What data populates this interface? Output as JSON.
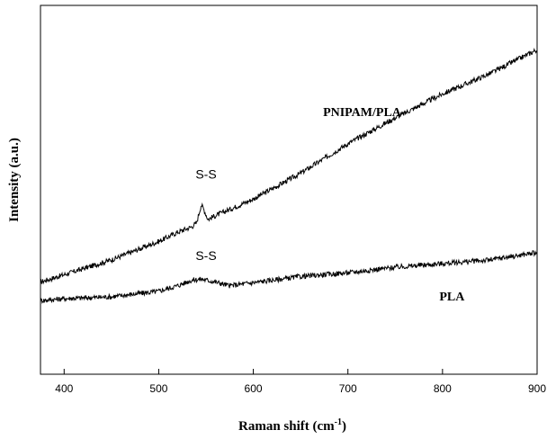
{
  "chart_data": {
    "type": "line",
    "xlabel": "Raman shift (cm",
    "xlabel_sup": "-1",
    "xlabel_close": ")",
    "ylabel": "Intensity (a.u.)",
    "xlim": [
      375,
      900
    ],
    "x_ticks": [
      "400",
      "500",
      "600",
      "700",
      "800",
      "900"
    ],
    "y_ticks_labeled": false,
    "series": [
      {
        "name": "PNIPAM/PLA",
        "points": [
          [
            375,
            0.25
          ],
          [
            400,
            0.27
          ],
          [
            450,
            0.31
          ],
          [
            480,
            0.34
          ],
          [
            500,
            0.36
          ],
          [
            520,
            0.385
          ],
          [
            535,
            0.4
          ],
          [
            540,
            0.41
          ],
          [
            545,
            0.46
          ],
          [
            548,
            0.445
          ],
          [
            552,
            0.42
          ],
          [
            560,
            0.43
          ],
          [
            600,
            0.475
          ],
          [
            650,
            0.545
          ],
          [
            700,
            0.625
          ],
          [
            750,
            0.695
          ],
          [
            800,
            0.76
          ],
          [
            850,
            0.815
          ],
          [
            900,
            0.88
          ]
        ]
      },
      {
        "name": "PLA",
        "points": [
          [
            375,
            0.2
          ],
          [
            400,
            0.205
          ],
          [
            450,
            0.21
          ],
          [
            500,
            0.225
          ],
          [
            520,
            0.24
          ],
          [
            535,
            0.255
          ],
          [
            545,
            0.258
          ],
          [
            560,
            0.25
          ],
          [
            575,
            0.24
          ],
          [
            590,
            0.245
          ],
          [
            620,
            0.255
          ],
          [
            650,
            0.265
          ],
          [
            700,
            0.275
          ],
          [
            750,
            0.29
          ],
          [
            800,
            0.3
          ],
          [
            850,
            0.31
          ],
          [
            900,
            0.33
          ]
        ]
      }
    ],
    "annotations": [
      {
        "text": "PNIPAM/PLA",
        "x": 715,
        "y": 0.7,
        "style": "bold"
      },
      {
        "text": "S-S",
        "x": 550,
        "y": 0.53,
        "style": "plain"
      },
      {
        "text": "S-S",
        "x": 550,
        "y": 0.31,
        "style": "plain"
      },
      {
        "text": "PLA",
        "x": 810,
        "y": 0.2,
        "style": "bold"
      }
    ]
  }
}
